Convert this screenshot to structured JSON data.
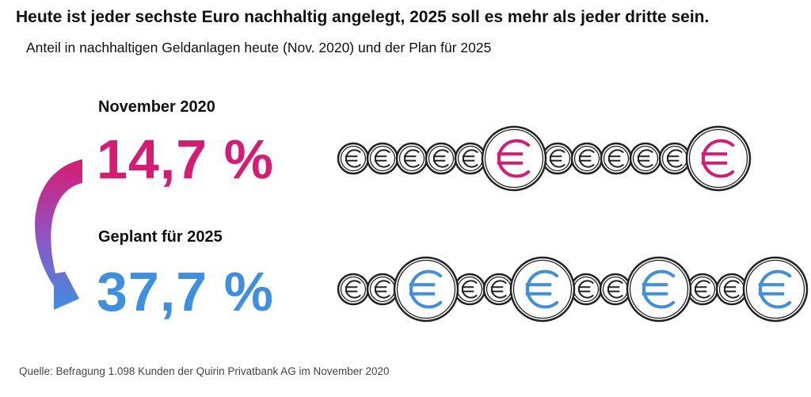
{
  "title": "Heute ist jeder sechste Euro nachhaltig angelegt, 2025 soll es mehr als jeder dritte sein.",
  "subtitle": "Anteil in nachhaltigen Geldanlagen heute (Nov. 2020) und der Plan für 2025",
  "source": "Quelle: Befragung 1.098 Kunden der Quirin Privatbank AG im November 2020",
  "colors": {
    "magenta": "#d81b72",
    "blue": "#3f8fe0",
    "coin_outline": "#222222"
  },
  "icons": {
    "coin": "euro-coin-icon",
    "arrow": "curved-arrow-icon"
  },
  "chart_data": {
    "type": "pictogram",
    "categories": [
      "November 2020",
      "Geplant für 2025"
    ],
    "values": [
      14.7,
      37.7
    ],
    "value_labels": [
      "14,7 %",
      "37,7 %"
    ],
    "unit": "%",
    "coins_per_row": 12,
    "highlighted_coins": [
      2,
      4
    ],
    "series_colors": [
      "#d81b72",
      "#3f8fe0"
    ]
  }
}
